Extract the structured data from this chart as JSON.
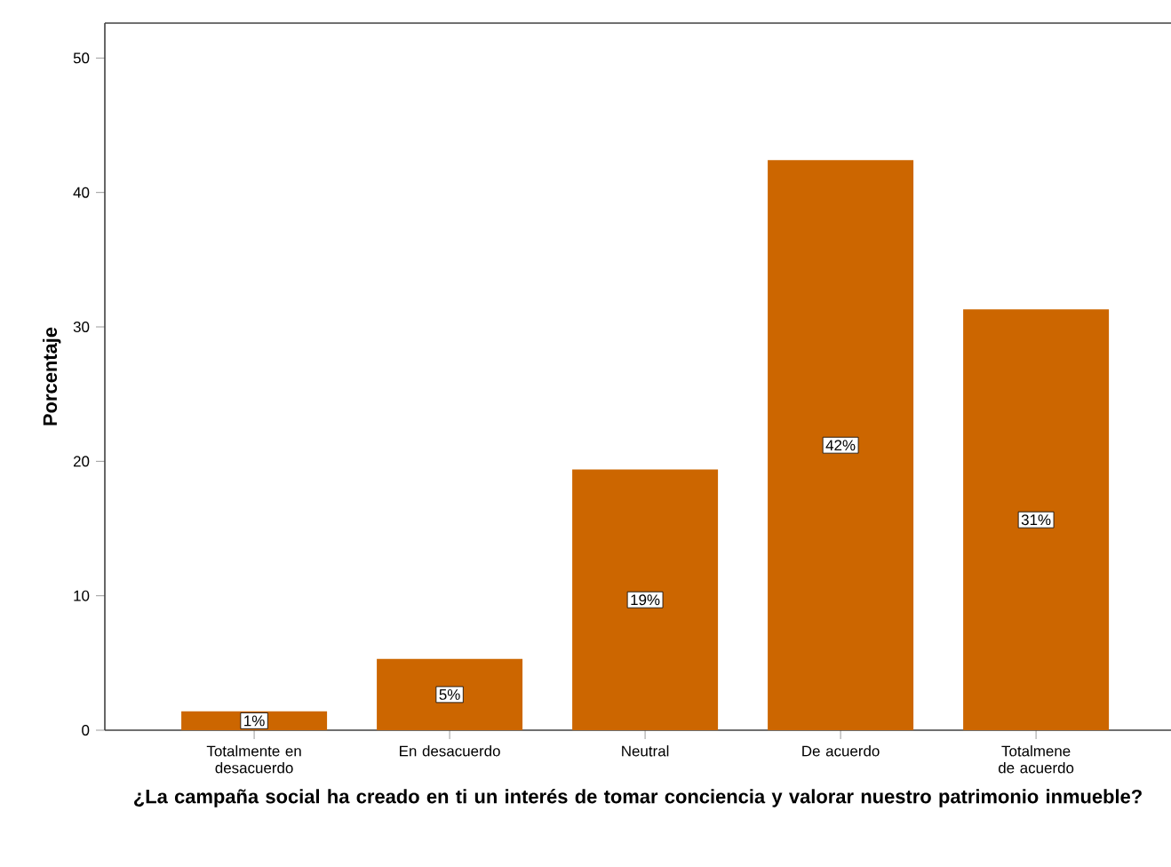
{
  "chart_data": {
    "type": "bar",
    "xlabel": "¿La campaña social ha creado en ti un interés de tomar conciencia y valorar nuestro patrimonio inmueble?",
    "ylabel": "Porcentaje",
    "categories": [
      "Totalmente en desacuerdo",
      "En desacuerdo",
      "Neutral",
      "De acuerdo",
      "Totalmene de acuerdo"
    ],
    "values": [
      1.4,
      5.3,
      19.4,
      42.4,
      31.3
    ],
    "value_labels": [
      "1%",
      "5%",
      "19%",
      "42%",
      "31%"
    ],
    "color": "#cc6600",
    "ylim": [
      0,
      52.6
    ],
    "yticks": [
      0,
      10,
      20,
      30,
      40,
      50
    ]
  }
}
